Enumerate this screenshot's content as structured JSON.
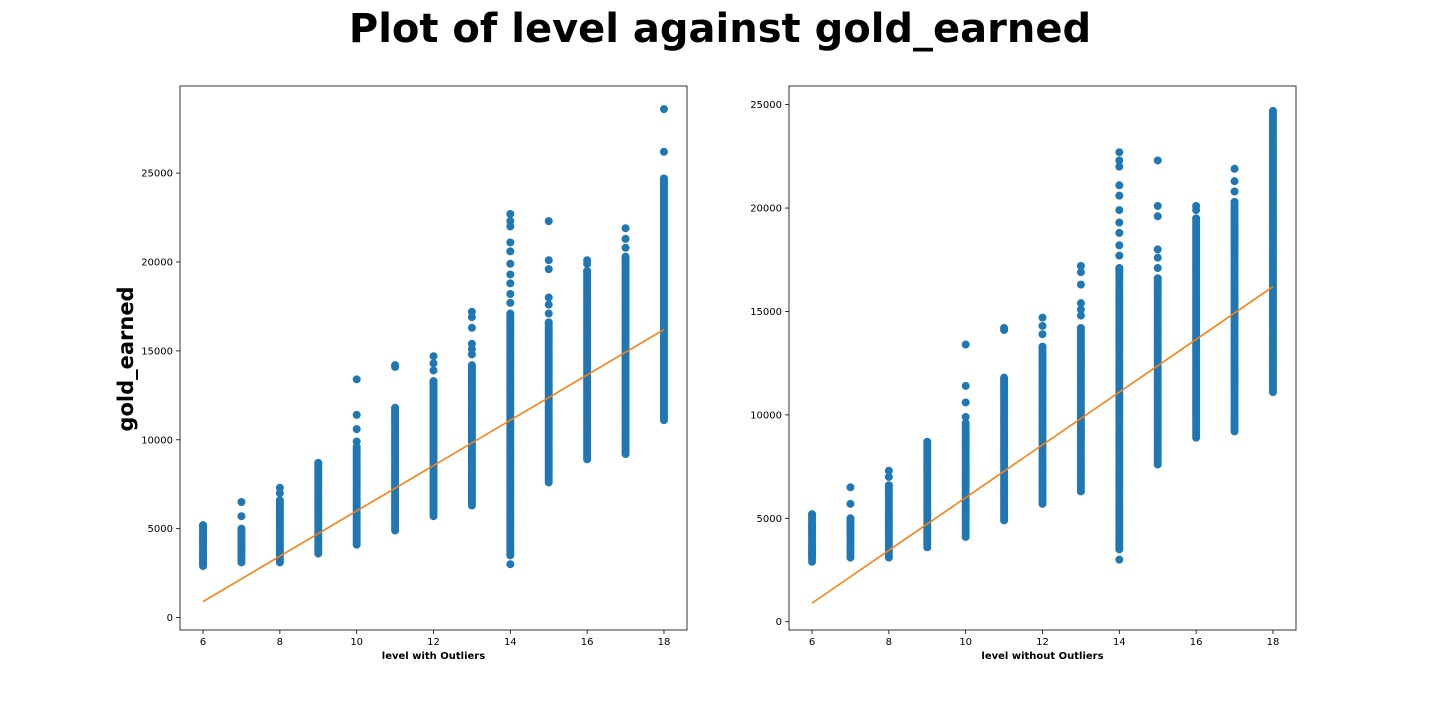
{
  "title": "Plot of level against gold_earned",
  "ylabel": "gold_earned",
  "colors": {
    "points": "#1f77b4",
    "fit_line": "#ff7f0e"
  },
  "chart_data": [
    {
      "type": "scatter",
      "xlabel": "level with Outliers",
      "ylabel": "gold_earned",
      "xlim": [
        5.4,
        18.6
      ],
      "ylim": [
        -700,
        29900
      ],
      "xticks": [
        6,
        8,
        10,
        12,
        14,
        16,
        18
      ],
      "yticks": [
        0,
        5000,
        10000,
        15000,
        20000,
        25000
      ],
      "grid": false,
      "scatter_series": {
        "name": "",
        "columns": [
          {
            "x": 6,
            "range": [
              2900,
              5200
            ],
            "extra": [
              3300,
              3600,
              4300,
              4600
            ]
          },
          {
            "x": 7,
            "range": [
              3100,
              5000
            ],
            "extra": [
              5700,
              6500
            ]
          },
          {
            "x": 8,
            "range": [
              3100,
              6600
            ],
            "extra": [
              7000,
              7300
            ]
          },
          {
            "x": 9,
            "range": [
              3600,
              8700
            ],
            "extra": []
          },
          {
            "x": 10,
            "range": [
              4100,
              9600
            ],
            "extra": [
              9900,
              10600,
              11400,
              13400
            ]
          },
          {
            "x": 11,
            "range": [
              4900,
              11800
            ],
            "extra": [
              14100,
              14200
            ]
          },
          {
            "x": 12,
            "range": [
              5700,
              13300
            ],
            "extra": [
              13900,
              14300,
              14700
            ]
          },
          {
            "x": 13,
            "range": [
              6300,
              14200
            ],
            "extra": [
              14800,
              15100,
              15400,
              16300,
              16900,
              17200
            ]
          },
          {
            "x": 14,
            "range": [
              3500,
              17100
            ],
            "extra": [
              3000,
              17700,
              18200,
              18800,
              19300,
              19900,
              20600,
              21100,
              22000,
              22300,
              22700
            ]
          },
          {
            "x": 15,
            "range": [
              7600,
              16600
            ],
            "extra": [
              17100,
              17600,
              18000,
              19600,
              20100,
              22300
            ]
          },
          {
            "x": 16,
            "range": [
              8900,
              19500
            ],
            "extra": [
              19900,
              20100
            ]
          },
          {
            "x": 17,
            "range": [
              9200,
              20300
            ],
            "extra": [
              20800,
              21300,
              21900
            ]
          },
          {
            "x": 18,
            "range": [
              11100,
              24700
            ],
            "extra": [
              26200,
              28600
            ]
          }
        ]
      },
      "fit_line": {
        "x": [
          6,
          18
        ],
        "y": [
          900,
          16200
        ]
      }
    },
    {
      "type": "scatter",
      "xlabel": "level without Outliers",
      "ylabel": "",
      "xlim": [
        5.4,
        18.6
      ],
      "ylim": [
        -400,
        25900
      ],
      "xticks": [
        6,
        8,
        10,
        12,
        14,
        16,
        18
      ],
      "yticks": [
        0,
        5000,
        10000,
        15000,
        20000,
        25000
      ],
      "grid": false,
      "scatter_series": {
        "name": "",
        "columns": [
          {
            "x": 6,
            "range": [
              2900,
              5200
            ],
            "extra": [
              3300,
              3600,
              4300,
              4600
            ]
          },
          {
            "x": 7,
            "range": [
              3100,
              5000
            ],
            "extra": [
              5700,
              6500
            ]
          },
          {
            "x": 8,
            "range": [
              3100,
              6600
            ],
            "extra": [
              7000,
              7300
            ]
          },
          {
            "x": 9,
            "range": [
              3600,
              8700
            ],
            "extra": []
          },
          {
            "x": 10,
            "range": [
              4100,
              9600
            ],
            "extra": [
              9900,
              10600,
              11400,
              13400
            ]
          },
          {
            "x": 11,
            "range": [
              4900,
              11800
            ],
            "extra": [
              14100,
              14200
            ]
          },
          {
            "x": 12,
            "range": [
              5700,
              13300
            ],
            "extra": [
              13900,
              14300,
              14700
            ]
          },
          {
            "x": 13,
            "range": [
              6300,
              14200
            ],
            "extra": [
              14800,
              15100,
              15400,
              16300,
              16900,
              17200
            ]
          },
          {
            "x": 14,
            "range": [
              3500,
              17100
            ],
            "extra": [
              3000,
              17700,
              18200,
              18800,
              19300,
              19900,
              20600,
              21100,
              22000,
              22300,
              22700
            ]
          },
          {
            "x": 15,
            "range": [
              7600,
              16600
            ],
            "extra": [
              17100,
              17600,
              18000,
              19600,
              20100,
              22300
            ]
          },
          {
            "x": 16,
            "range": [
              8900,
              19500
            ],
            "extra": [
              19900,
              20100
            ]
          },
          {
            "x": 17,
            "range": [
              9200,
              20300
            ],
            "extra": [
              20800,
              21300,
              21900
            ]
          },
          {
            "x": 18,
            "range": [
              11100,
              24700
            ],
            "extra": []
          }
        ]
      },
      "fit_line": {
        "x": [
          6,
          18
        ],
        "y": [
          900,
          16200
        ]
      }
    }
  ]
}
